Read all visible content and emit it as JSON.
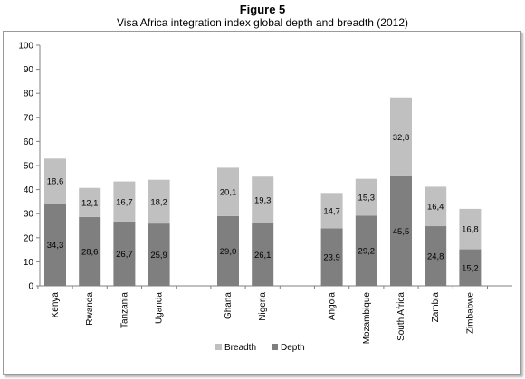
{
  "figure": {
    "label": "Figure 5",
    "title": "Visa Africa integration index global depth and breadth (2012)"
  },
  "chart_data": {
    "type": "bar",
    "stacked": true,
    "categories": [
      "Kenya",
      "Rwanda",
      "Tanzania",
      "Uganda",
      "Ghana",
      "Nigeria",
      "Angola",
      "Mozambique",
      "South Africa",
      "Zambia",
      "Zimbabwe"
    ],
    "groups": [
      [
        0,
        1,
        2,
        3
      ],
      [
        4,
        5
      ],
      [
        6,
        7,
        8,
        9,
        10
      ]
    ],
    "series": [
      {
        "name": "Depth",
        "color": "#7f7f7f",
        "values": [
          34.3,
          28.6,
          26.7,
          25.9,
          29.0,
          26.1,
          23.9,
          29.2,
          45.5,
          24.8,
          15.2
        ],
        "labels": [
          "34,3",
          "28,6",
          "26,7",
          "25,9",
          "29,0",
          "26,1",
          "23,9",
          "29,2",
          "45,5",
          "24,8",
          "15,2"
        ]
      },
      {
        "name": "Breadth",
        "color": "#c0c0c0",
        "values": [
          18.6,
          12.1,
          16.7,
          18.2,
          20.1,
          19.3,
          14.7,
          15.3,
          32.8,
          16.4,
          16.8
        ],
        "labels": [
          "18,6",
          "12,1",
          "16,7",
          "18,2",
          "20,1",
          "19,3",
          "14,7",
          "15,3",
          "32,8",
          "16,4",
          "16,8"
        ]
      }
    ],
    "ylim": [
      0,
      100
    ],
    "yticks": [
      0,
      10,
      20,
      30,
      40,
      50,
      60,
      70,
      80,
      90,
      100
    ],
    "grid": false,
    "legend": {
      "position": "bottom",
      "order": [
        "Breadth",
        "Depth"
      ]
    }
  }
}
